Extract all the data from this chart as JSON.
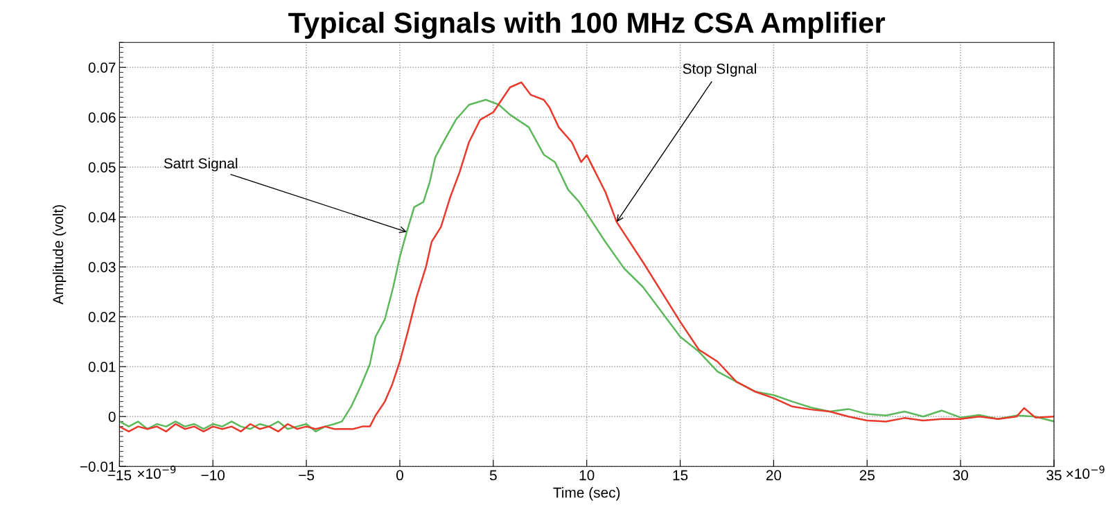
{
  "chart_data": {
    "type": "line",
    "title": "Typical Signals with 100 MHz CSA Amplifier",
    "xlabel": "Time (sec)",
    "ylabel": "Amplitude (volt)",
    "xlim": [
      -15,
      35
    ],
    "xticks": [
      {
        "value": -15,
        "label": "−15"
      },
      {
        "value": -10,
        "label": "−10"
      },
      {
        "value": -5,
        "label": "−5"
      },
      0,
      5,
      10,
      15,
      20,
      25,
      30,
      35
    ],
    "ylim": [
      -0.01,
      0.075
    ],
    "yticks": [
      {
        "value": -0.01,
        "label": "−0.01"
      },
      0,
      0.01,
      0.02,
      0.03,
      0.04,
      0.05,
      0.06,
      0.07
    ],
    "grid": true,
    "line_style": "solid",
    "marker": "none",
    "series": [
      {
        "color": "#5cb85a",
        "x": [
          -15,
          -14.5,
          -14,
          -13.5,
          -13,
          -12.5,
          -12,
          -11.5,
          -11,
          -10.5,
          -10,
          -9.5,
          -9,
          -8.5,
          -8,
          -7.5,
          -7,
          -6.5,
          -6,
          -5.5,
          -5,
          -4.5,
          -4,
          -3.5,
          -3.1,
          -2.6,
          -2.1,
          -1.6,
          -1.3,
          -0.8,
          -0.35,
          0,
          0.37,
          0.77,
          1.26,
          1.6,
          1.9,
          2.4,
          3.0,
          3.7,
          4.6,
          5.3,
          5.9,
          6.9,
          7.7,
          8.3,
          9.0,
          9.6,
          10,
          11,
          12,
          13,
          14,
          15,
          16,
          17,
          18,
          19,
          20,
          21,
          22,
          23,
          24,
          25,
          26,
          27,
          28,
          29,
          30,
          31,
          32,
          33,
          34,
          35
        ],
        "values": [
          -0.001,
          -0.002,
          -0.001,
          -0.0025,
          -0.0015,
          -0.002,
          -0.001,
          -0.002,
          -0.0015,
          -0.0025,
          -0.0015,
          -0.002,
          -0.001,
          -0.002,
          -0.0025,
          -0.0015,
          -0.002,
          -0.001,
          -0.0025,
          -0.002,
          -0.0015,
          -0.003,
          -0.002,
          -0.0015,
          -0.001,
          0.002,
          0.006,
          0.0105,
          0.016,
          0.0195,
          0.026,
          0.032,
          0.037,
          0.042,
          0.043,
          0.047,
          0.052,
          0.0555,
          0.0595,
          0.0625,
          0.0635,
          0.0625,
          0.0605,
          0.058,
          0.0525,
          0.051,
          0.0455,
          0.043,
          0.0407,
          0.035,
          0.0297,
          0.026,
          0.021,
          0.016,
          0.013,
          0.009,
          0.007,
          0.005,
          0.0043,
          0.003,
          0.0018,
          0.001,
          0.0015,
          0.0005,
          0.0002,
          0.001,
          0.0,
          0.0012,
          -0.0002,
          0.0003,
          -0.0005,
          0.0002,
          0.0,
          -0.001
        ]
      },
      {
        "color": "#e8392c",
        "x": [
          -15,
          -14.5,
          -14,
          -13.5,
          -13,
          -12.5,
          -12,
          -11.5,
          -11,
          -10.5,
          -10,
          -9.5,
          -9,
          -8.5,
          -8,
          -7.5,
          -7,
          -6.5,
          -6,
          -5.5,
          -5,
          -4.5,
          -4,
          -3.5,
          -3,
          -2.5,
          -2,
          -1.6,
          -1.3,
          -0.8,
          -0.4,
          0,
          0.45,
          0.9,
          1.4,
          1.7,
          2.2,
          2.7,
          3.2,
          3.7,
          4.3,
          5.0,
          5.45,
          5.9,
          6.5,
          7.0,
          7.7,
          8.0,
          8.5,
          9.2,
          9.7,
          10,
          11,
          11.6,
          13,
          14,
          15,
          16,
          17,
          18,
          19,
          20,
          21,
          22,
          23,
          24,
          25,
          26,
          27,
          28,
          29,
          30,
          31,
          32,
          33,
          33.4,
          34,
          35
        ],
        "values": [
          -0.002,
          -0.003,
          -0.002,
          -0.0025,
          -0.002,
          -0.003,
          -0.0015,
          -0.0025,
          -0.002,
          -0.003,
          -0.002,
          -0.0025,
          -0.002,
          -0.003,
          -0.0015,
          -0.0025,
          -0.002,
          -0.003,
          -0.0015,
          -0.0025,
          -0.002,
          -0.0025,
          -0.002,
          -0.0025,
          -0.0025,
          -0.0025,
          -0.002,
          -0.002,
          0.0002,
          0.003,
          0.0065,
          0.011,
          0.0173,
          0.024,
          0.03,
          0.035,
          0.038,
          0.044,
          0.049,
          0.055,
          0.0595,
          0.061,
          0.0635,
          0.066,
          0.067,
          0.0645,
          0.0635,
          0.062,
          0.058,
          0.055,
          0.051,
          0.0524,
          0.045,
          0.039,
          0.031,
          0.025,
          0.019,
          0.0134,
          0.011,
          0.007,
          0.005,
          0.0037,
          0.002,
          0.0014,
          0.001,
          0.0,
          -0.0008,
          -0.001,
          -0.0003,
          -0.0008,
          -0.0005,
          -0.0005,
          0.0,
          -0.0005,
          0.0,
          0.0017,
          -0.0002,
          0.0
        ]
      }
    ],
    "annotations": [
      {
        "text": "Satrt Signal",
        "x": 0.37,
        "y": 0.037
      },
      {
        "text": "Stop SIgnal",
        "x": 11.6,
        "y": 0.039
      },
      "×10$^{−9}$",
      "×10$^{−9}$"
    ]
  }
}
